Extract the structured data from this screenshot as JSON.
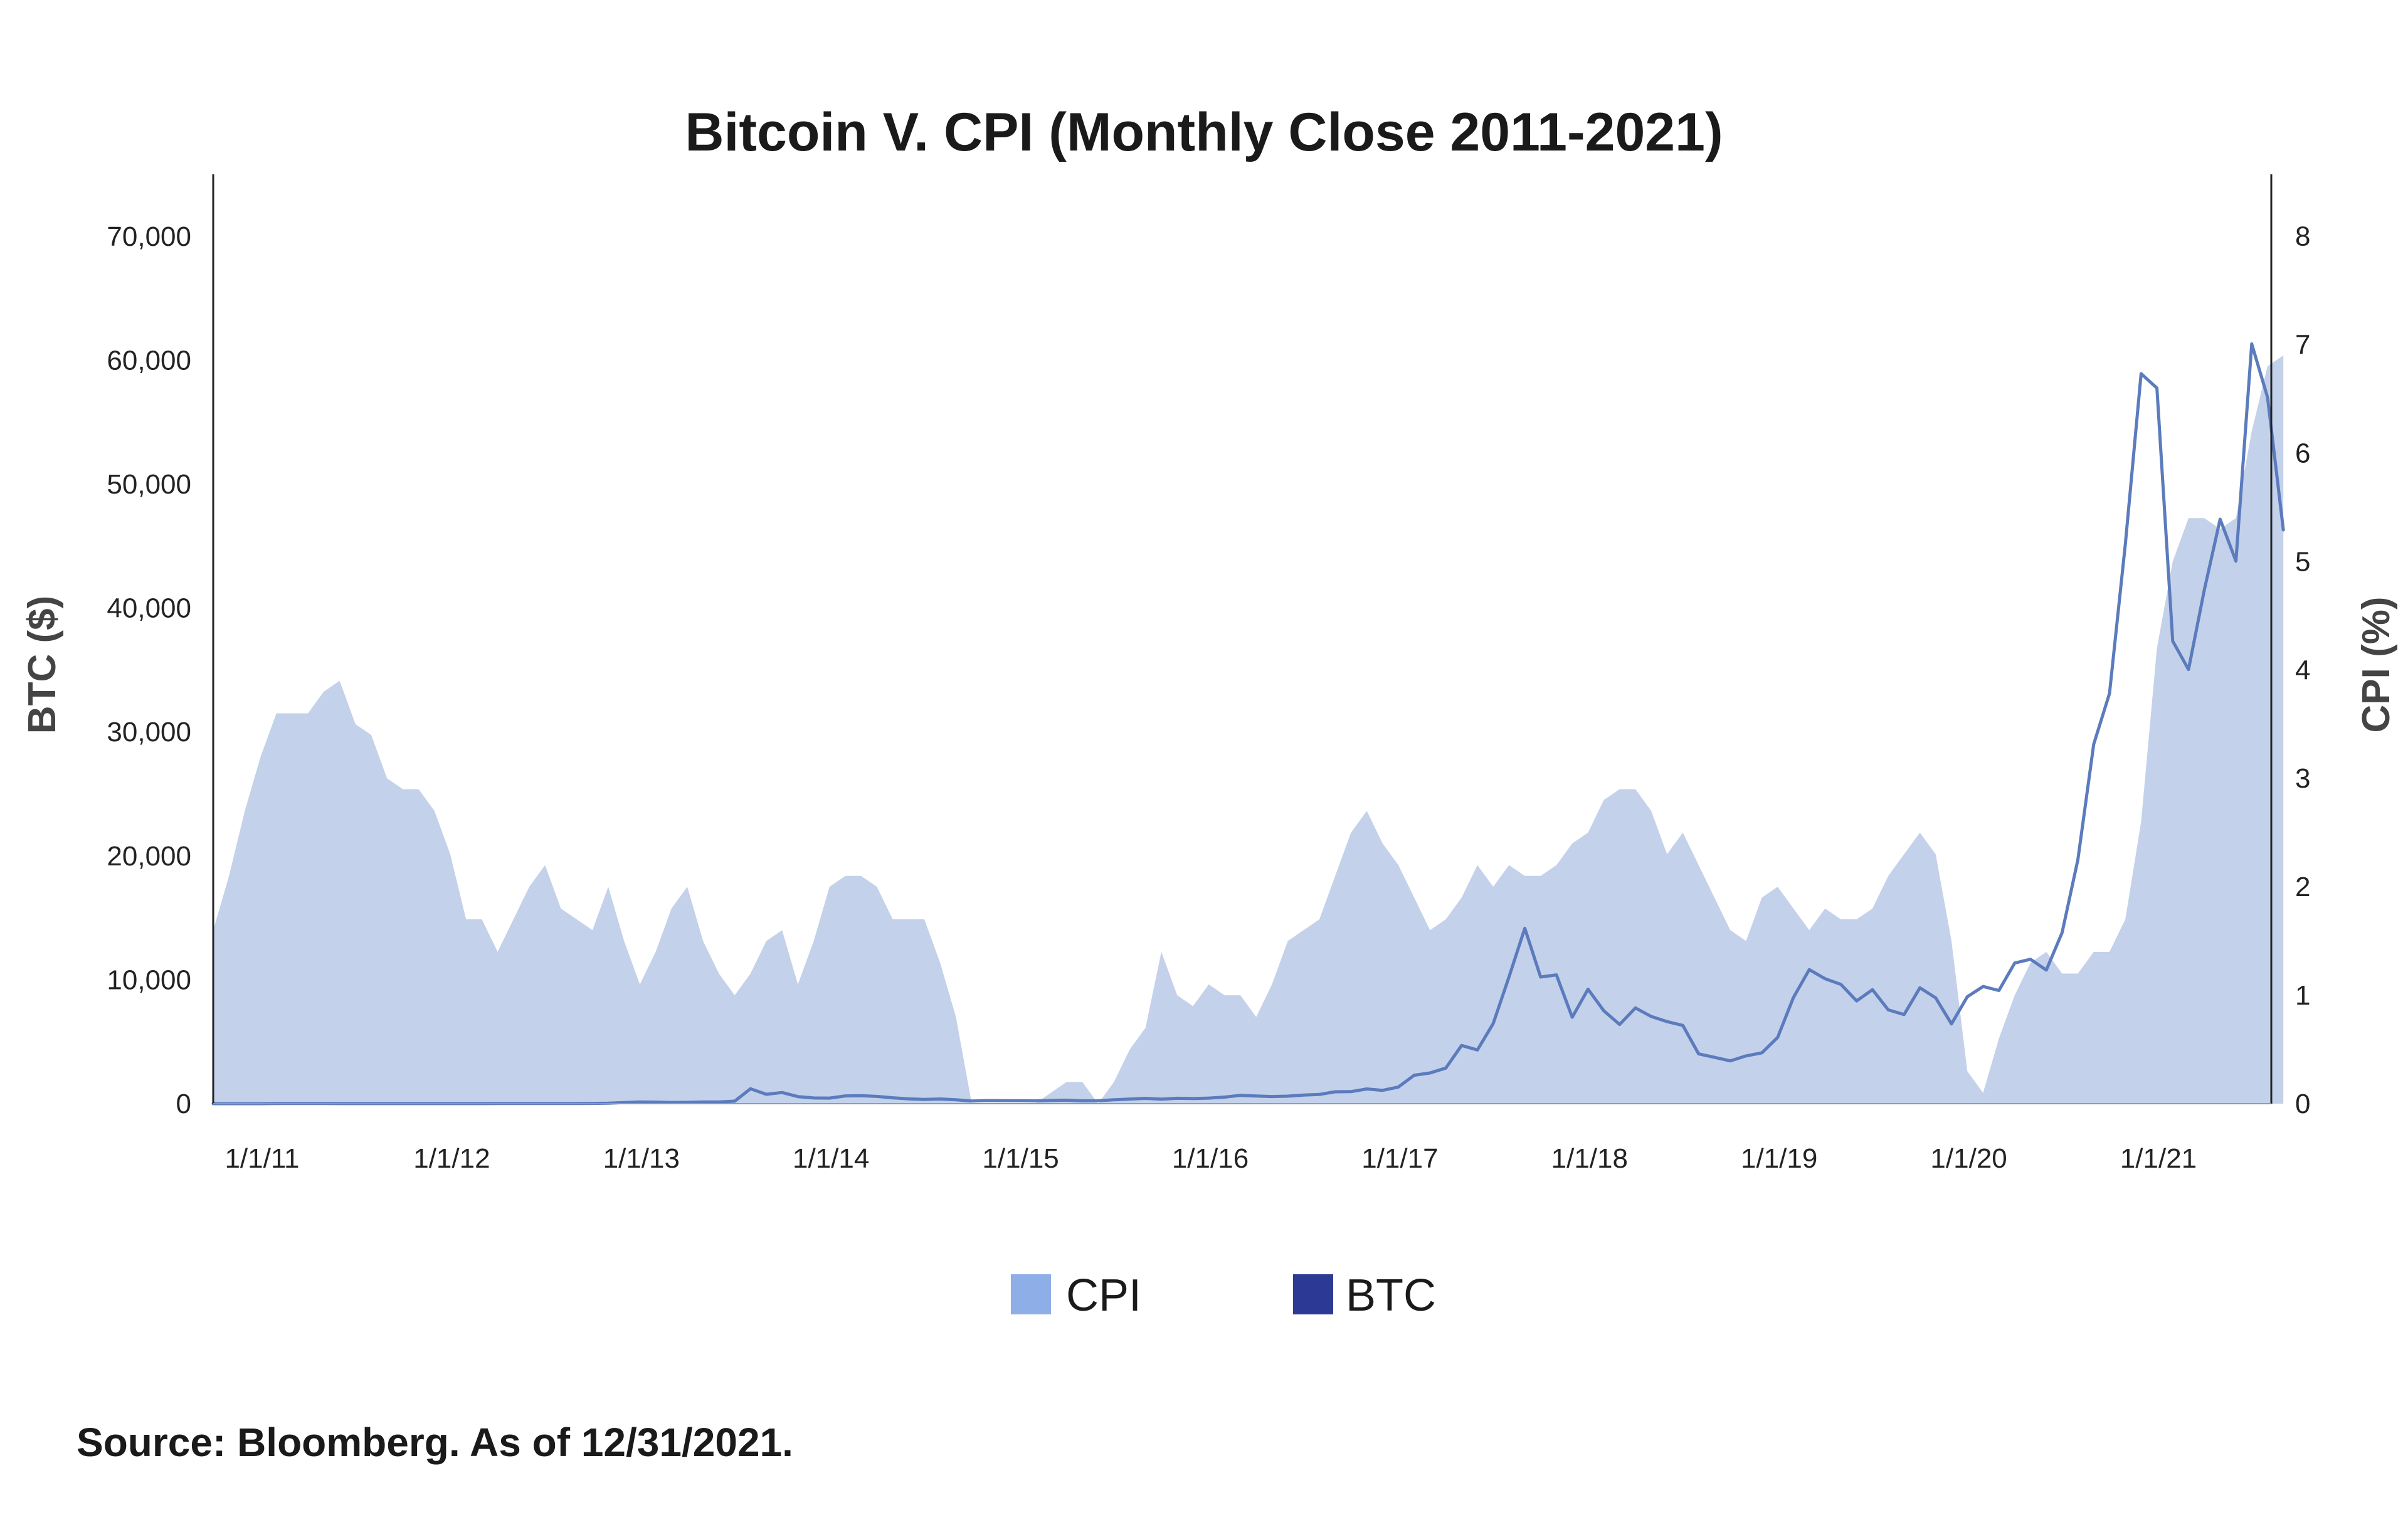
{
  "chart_data": {
    "type": "area",
    "title": "Bitcoin V. CPI (Monthly Close 2011-2021)",
    "source": "Source: Bloomberg. As of 12/31/2021.",
    "x_start": "2011-01",
    "x_tick_labels": [
      "1/1/11",
      "1/1/12",
      "1/1/13",
      "1/1/14",
      "1/1/15",
      "1/1/16",
      "1/1/17",
      "1/1/18",
      "1/1/19",
      "1/1/20",
      "1/1/21"
    ],
    "y_left": {
      "label": "BTC ($)",
      "range": [
        0,
        75000
      ],
      "ticks": [
        0,
        10000,
        20000,
        30000,
        40000,
        50000,
        60000,
        70000
      ],
      "tick_labels": [
        "0",
        "10,000",
        "20,000",
        "30,000",
        "40,000",
        "50,000",
        "60,000",
        "70,000"
      ]
    },
    "y_right": {
      "label": "CPI (%)",
      "range": [
        0,
        8.57
      ],
      "ticks": [
        0,
        1,
        2,
        3,
        4,
        5,
        6,
        7,
        8
      ],
      "tick_labels": [
        "0",
        "1",
        "2",
        "3",
        "4",
        "5",
        "6",
        "7",
        "8"
      ]
    },
    "legend_position": "bottom-center",
    "series": [
      {
        "name": "CPI",
        "type": "area",
        "axis": "right",
        "color": "#c3d1ea",
        "legend_color": "#8eaee8",
        "values": [
          1.6,
          2.1,
          2.7,
          3.2,
          3.6,
          3.6,
          3.6,
          3.8,
          3.9,
          3.5,
          3.4,
          3.0,
          2.9,
          2.9,
          2.7,
          2.3,
          1.7,
          1.7,
          1.4,
          1.7,
          2.0,
          2.2,
          1.8,
          1.7,
          1.6,
          2.0,
          1.5,
          1.1,
          1.4,
          1.8,
          2.0,
          1.5,
          1.2,
          1.0,
          1.2,
          1.5,
          1.6,
          1.1,
          1.5,
          2.0,
          2.1,
          2.1,
          2.0,
          1.7,
          1.7,
          1.7,
          1.3,
          0.8,
          -0.1,
          0.0,
          -0.1,
          -0.2,
          0.0,
          0.1,
          0.2,
          0.2,
          0.0,
          0.2,
          0.5,
          0.7,
          1.4,
          1.0,
          0.9,
          1.1,
          1.0,
          1.0,
          0.8,
          1.1,
          1.5,
          1.6,
          1.7,
          2.1,
          2.5,
          2.7,
          2.4,
          2.2,
          1.9,
          1.6,
          1.7,
          1.9,
          2.2,
          2.0,
          2.2,
          2.1,
          2.1,
          2.2,
          2.4,
          2.5,
          2.8,
          2.9,
          2.9,
          2.7,
          2.3,
          2.5,
          2.2,
          1.9,
          1.6,
          1.5,
          1.9,
          2.0,
          1.8,
          1.6,
          1.8,
          1.7,
          1.7,
          1.8,
          2.1,
          2.3,
          2.5,
          2.3,
          1.5,
          0.3,
          0.1,
          0.6,
          1.0,
          1.3,
          1.4,
          1.2,
          1.2,
          1.4,
          1.4,
          1.7,
          2.6,
          4.2,
          5.0,
          5.4,
          5.4,
          5.3,
          5.4,
          6.2,
          6.8,
          6.9
        ]
      },
      {
        "name": "BTC",
        "type": "line",
        "axis": "left",
        "color": "#5b7bbd",
        "legend_color": "#2c3a96",
        "values": [
          0.3,
          1,
          1,
          1,
          8.7,
          16.7,
          13.4,
          8.2,
          5.1,
          3.2,
          3.0,
          4.7,
          5.5,
          4.9,
          4.9,
          4.9,
          5.2,
          6.7,
          9.4,
          10.2,
          12.4,
          11.2,
          12.6,
          13.5,
          20.4,
          33.4,
          93,
          139,
          129,
          97,
          106,
          141,
          142,
          204,
          1205,
          757,
          900,
          570,
          458,
          448,
          630,
          641,
          586,
          478,
          389,
          337,
          378,
          320,
          217,
          254,
          244,
          236,
          230,
          263,
          284,
          230,
          236,
          313,
          377,
          430,
          369,
          437,
          416,
          448,
          531,
          673,
          624,
          575,
          609,
          700,
          742,
          963,
          970,
          1190,
          1079,
          1348,
          2300,
          2480,
          2875,
          4703,
          4338,
          6468,
          10233,
          14156,
          10221,
          10397,
          6973,
          9240,
          7494,
          6391,
          7729,
          7037,
          6626,
          6318,
          4017,
          3742,
          3457,
          3854,
          4105,
          5350,
          8574,
          10818,
          10085,
          9630,
          8293,
          9199,
          7569,
          7193,
          9350,
          8544,
          6438,
          8629,
          9461,
          9137,
          11351,
          11655,
          10784,
          13804,
          19700,
          29002,
          33114,
          45137,
          58918,
          57750,
          37332,
          35041,
          41461,
          47166,
          43790,
          61318,
          57005,
          46306
        ]
      }
    ]
  }
}
